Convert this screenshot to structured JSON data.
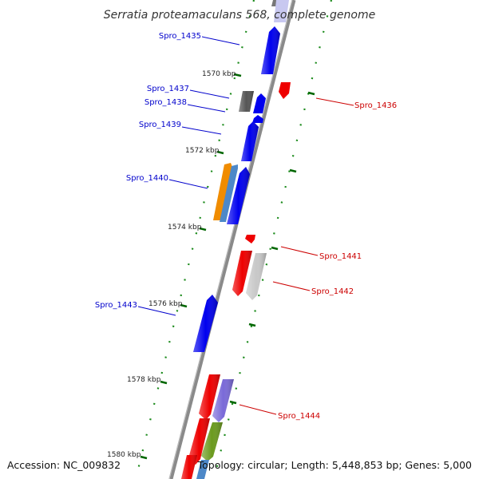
{
  "title": "Serratia proteamaculans 568, complete genome",
  "footer": {
    "accession": "Accession: NC_009832",
    "stats": "Topology: circular; Length: 5,448,853 bp; Genes: 5,000"
  },
  "colors": {
    "plus_label": "#0000cc",
    "minus_label": "#cc0000",
    "backbone": "#888888",
    "tick": "#006600"
  },
  "kbp_marks": [
    "1570 kbp",
    "1572 kbp",
    "1574 kbp",
    "1576 kbp",
    "1578 kbp",
    "1580 kbp"
  ],
  "gene_labels": {
    "plus": [
      "Spro_1435",
      "Spro_1437",
      "Spro_1438",
      "Spro_1439",
      "Spro_1440",
      "Spro_1443"
    ],
    "minus": [
      "Spro_1436",
      "Spro_1441",
      "Spro_1442",
      "Spro_1444"
    ]
  },
  "features": [
    {
      "name": "top-gray-cds",
      "strand": "plus",
      "color": "#777777"
    },
    {
      "name": "top-lavender-cds",
      "strand": "plus",
      "color": "#c8c8f0"
    },
    {
      "name": "spro-1435-cds",
      "strand": "plus",
      "color": "#0000ee"
    },
    {
      "name": "spro-1436-cds",
      "strand": "minus",
      "color": "#ee0000"
    },
    {
      "name": "spro-1437-cds",
      "strand": "plus",
      "color": "#555555"
    },
    {
      "name": "spro-1438-cds",
      "strand": "plus",
      "color": "#0000ee"
    },
    {
      "name": "spro-1438b-cds",
      "strand": "plus",
      "color": "#0000ee"
    },
    {
      "name": "spro-1439-cds",
      "strand": "plus",
      "color": "#0000ee"
    },
    {
      "name": "spro-1440-orange-cds",
      "strand": "plus",
      "color": "#f08c00"
    },
    {
      "name": "spro-1440-steel-cds",
      "strand": "plus",
      "color": "#4d88c8"
    },
    {
      "name": "spro-1440-cds",
      "strand": "plus",
      "color": "#0000ee"
    },
    {
      "name": "spro-1441-cds",
      "strand": "minus",
      "color": "#ee0000"
    },
    {
      "name": "spro-1441b-cds",
      "strand": "minus",
      "color": "#ee0000"
    },
    {
      "name": "spro-1442-cds",
      "strand": "minus",
      "color": "#c8c8c8"
    },
    {
      "name": "spro-1443-cds",
      "strand": "plus",
      "color": "#0000ee"
    },
    {
      "name": "spro-1444-red-cds",
      "strand": "minus",
      "color": "#ee0000"
    },
    {
      "name": "spro-1444-cds",
      "strand": "minus",
      "color": "#7a6ad8"
    },
    {
      "name": "bottom-red-cds",
      "strand": "minus",
      "color": "#ee0000"
    },
    {
      "name": "bottom-olive-cds",
      "strand": "minus",
      "color": "#6b9a1e"
    },
    {
      "name": "bottom-red2-cds",
      "strand": "minus",
      "color": "#ee0000"
    },
    {
      "name": "bottom-steel-cds",
      "strand": "minus",
      "color": "#4d88c8"
    }
  ]
}
